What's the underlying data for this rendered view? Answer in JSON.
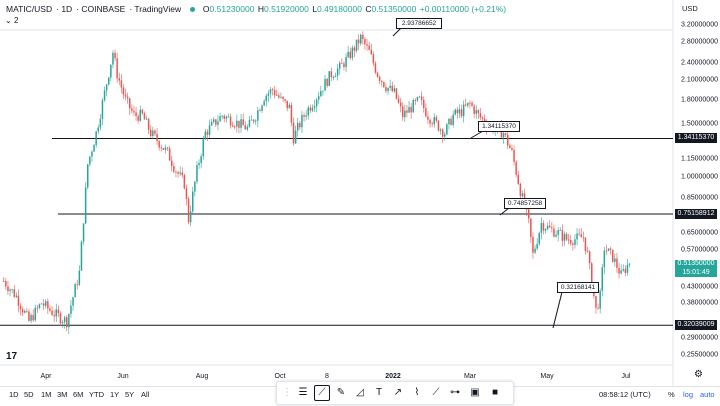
{
  "header": {
    "symbol": "MATIC/USD",
    "interval": "1D",
    "exchange": "COINBASE",
    "source": "TradingView",
    "open_label": "O",
    "open": "0.51230000",
    "high_label": "H",
    "high": "0.51920000",
    "low_label": "L",
    "low": "0.49180000",
    "close_label": "C",
    "close": "0.51350000",
    "change": "+0.00110000 (+0.21%)",
    "indicators_toggle": "2"
  },
  "y_axis": {
    "currency": "USD",
    "ticks": [
      "3.20000000",
      "2.80000000",
      "2.40000000",
      "2.10000000",
      "1.80000000",
      "1.50000000",
      "1.15000000",
      "1.00000000",
      "0.85000000",
      "0.65000000",
      "0.57000000",
      "0.43000000",
      "0.38000000",
      "0.29000000",
      "0.25500000"
    ],
    "line_badges": [
      "1.34115370",
      "0.75158912",
      "0.32039009"
    ],
    "price_badge": {
      "price": "0.51350000",
      "countdown": "15:01:49"
    }
  },
  "x_axis": {
    "ticks": [
      "Apr",
      "Jun",
      "Aug",
      "Oct",
      "8",
      "2022",
      "Mar",
      "May",
      "Jul"
    ],
    "bold_ticks": [
      "2022"
    ]
  },
  "callouts": [
    "2.93786652",
    "1.34115370",
    "0.74857258",
    "0.32168141"
  ],
  "timeframes": [
    "1D",
    "5D",
    "1M",
    "3M",
    "6M",
    "YTD",
    "1Y",
    "5Y",
    "All"
  ],
  "clock": "08:58:12 (UTC)",
  "scale_buttons": {
    "percent": "%",
    "log": "log",
    "auto": "auto"
  },
  "toolbar_tools": [
    "drag-handle-icon",
    "trend-lines-icon",
    "pitchfork-icon",
    "brush-icon",
    "shapes-icon",
    "text-icon",
    "arrow-icon",
    "patterns-icon",
    "forecast-icon",
    "measure-icon",
    "select-box-icon",
    "stop-icon"
  ],
  "colors": {
    "up": "#26a69a",
    "down": "#ef5350",
    "line": "#131722",
    "link": "#2962ff"
  },
  "chart_data": {
    "type": "candlestick",
    "scale": "log",
    "ylim": [
      0.255,
      3.2
    ],
    "horizontal_lines": [
      1.3411537,
      0.75158912,
      0.32039009
    ],
    "path_points": [
      [
        0,
        0.45
      ],
      [
        6,
        0.4
      ],
      [
        12,
        0.33
      ],
      [
        18,
        0.38
      ],
      [
        24,
        0.35
      ],
      [
        30,
        0.33
      ],
      [
        36,
        0.48
      ],
      [
        40,
        1.1
      ],
      [
        44,
        1.4
      ],
      [
        48,
        1.9
      ],
      [
        52,
        2.6
      ],
      [
        54,
        2.2
      ],
      [
        58,
        1.8
      ],
      [
        62,
        1.6
      ],
      [
        66,
        1.6
      ],
      [
        70,
        1.4
      ],
      [
        74,
        1.3
      ],
      [
        78,
        1.2
      ],
      [
        82,
        1.05
      ],
      [
        86,
        0.95
      ],
      [
        88,
        0.72
      ],
      [
        92,
        1.05
      ],
      [
        96,
        1.4
      ],
      [
        100,
        1.5
      ],
      [
        104,
        1.6
      ],
      [
        108,
        1.55
      ],
      [
        112,
        1.5
      ],
      [
        116,
        1.45
      ],
      [
        120,
        1.6
      ],
      [
        124,
        1.85
      ],
      [
        128,
        1.95
      ],
      [
        132,
        1.8
      ],
      [
        136,
        1.7
      ],
      [
        138,
        1.35
      ],
      [
        140,
        1.45
      ],
      [
        144,
        1.65
      ],
      [
        148,
        1.8
      ],
      [
        152,
        2.0
      ],
      [
        156,
        2.2
      ],
      [
        160,
        2.3
      ],
      [
        164,
        2.5
      ],
      [
        168,
        2.75
      ],
      [
        170,
        2.9
      ],
      [
        174,
        2.6
      ],
      [
        178,
        2.2
      ],
      [
        182,
        2.0
      ],
      [
        186,
        1.9
      ],
      [
        190,
        1.6
      ],
      [
        194,
        1.7
      ],
      [
        198,
        1.8
      ],
      [
        202,
        1.6
      ],
      [
        206,
        1.5
      ],
      [
        210,
        1.4
      ],
      [
        214,
        1.6
      ],
      [
        218,
        1.65
      ],
      [
        222,
        1.75
      ],
      [
        226,
        1.6
      ],
      [
        230,
        1.5
      ],
      [
        234,
        1.45
      ],
      [
        238,
        1.4
      ],
      [
        242,
        1.2
      ],
      [
        246,
        0.9
      ],
      [
        250,
        0.7
      ],
      [
        252,
        0.55
      ],
      [
        256,
        0.7
      ],
      [
        260,
        0.67
      ],
      [
        264,
        0.65
      ],
      [
        268,
        0.62
      ],
      [
        272,
        0.62
      ],
      [
        276,
        0.63
      ],
      [
        278,
        0.55
      ],
      [
        282,
        0.36
      ],
      [
        284,
        0.4
      ],
      [
        286,
        0.58
      ],
      [
        290,
        0.54
      ],
      [
        294,
        0.47
      ],
      [
        298,
        0.52
      ]
    ]
  }
}
